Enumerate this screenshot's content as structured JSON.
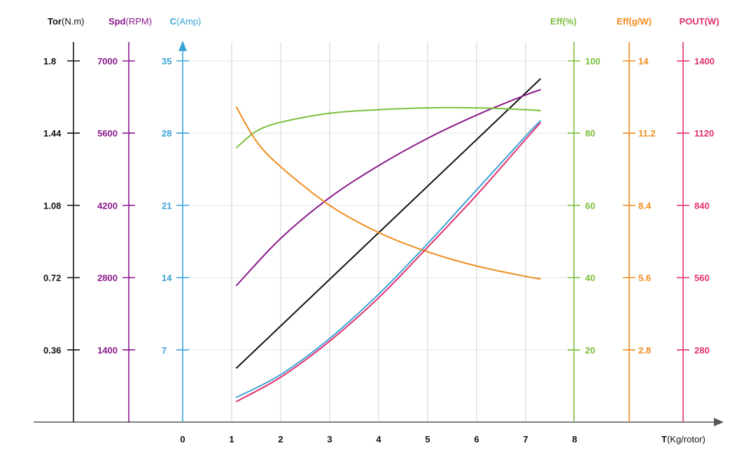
{
  "chart_data": {
    "type": "line",
    "x_axis": {
      "unit_bold": "T",
      "unit_rest": "(Kg/rotor)",
      "ticks": [
        "0",
        "1",
        "2",
        "3",
        "4",
        "5",
        "6",
        "7",
        "8"
      ],
      "range": [
        0,
        8
      ]
    },
    "axes": [
      {
        "id": "tor",
        "bold": "Tor",
        "rest": "(N.m)",
        "color": "#111111",
        "side": "left",
        "range": [
          0,
          1.8
        ],
        "ticks": [
          0.36,
          0.72,
          1.08,
          1.44,
          1.8
        ],
        "tick_labels": [
          "0.36",
          "0.72",
          "1.08",
          "1.44",
          "1.8"
        ]
      },
      {
        "id": "spd",
        "bold": "Spd",
        "rest": "(RPM)",
        "color": "#8b1a8b",
        "side": "left",
        "range": [
          0,
          7000
        ],
        "ticks": [
          1400,
          2800,
          4200,
          5600,
          7000
        ],
        "tick_labels": [
          "1400",
          "2800",
          "4200",
          "5600",
          "7000"
        ]
      },
      {
        "id": "c",
        "bold": "C",
        "rest": "(Amp)",
        "color": "#3aa3d6",
        "side": "left",
        "range": [
          0,
          35
        ],
        "ticks": [
          7,
          14,
          21,
          28,
          35
        ],
        "tick_labels": [
          "7",
          "14",
          "21",
          "28",
          "35"
        ]
      },
      {
        "id": "eff",
        "bold": "Eff",
        "rest": "(%)",
        "color": "#7bbf3c",
        "side": "right",
        "range": [
          0,
          100
        ],
        "ticks": [
          20,
          40,
          60,
          80,
          100
        ],
        "tick_labels": [
          "20",
          "40",
          "60",
          "80",
          "100"
        ]
      },
      {
        "id": "effg",
        "bold": "Eff",
        "rest": "(g/W)",
        "color": "#ee8c1e",
        "side": "right",
        "range": [
          0,
          14
        ],
        "ticks": [
          2.8,
          5.6,
          8.4,
          11.2,
          14
        ],
        "tick_labels": [
          "2.8",
          "5.6",
          "8.4",
          "11.2",
          "14"
        ]
      },
      {
        "id": "pout",
        "bold": "POUT",
        "rest": "(W)",
        "color": "#e0306e",
        "side": "right",
        "range": [
          0,
          1400
        ],
        "ticks": [
          280,
          560,
          840,
          1120,
          1400
        ],
        "tick_labels": [
          "280",
          "560",
          "840",
          "1120",
          "1400"
        ]
      }
    ],
    "series": [
      {
        "axis": "tor",
        "color": "#111111",
        "x": [
          1.1,
          7.3
        ],
        "y": [
          0.27,
          1.71
        ]
      },
      {
        "axis": "spd",
        "color": "#8b1a8b",
        "x": [
          1.1,
          2,
          3,
          4,
          5,
          6,
          7,
          7.3
        ],
        "y": [
          2650,
          3560,
          4350,
          4970,
          5500,
          5950,
          6340,
          6440
        ]
      },
      {
        "axis": "c",
        "color": "#3aa3d6",
        "x": [
          1.1,
          2,
          3,
          4,
          5,
          6,
          7,
          7.3
        ],
        "y": [
          2.4,
          4.6,
          8.1,
          12.4,
          17.3,
          22.5,
          27.7,
          29.2
        ]
      },
      {
        "axis": "eff",
        "color": "#7bbf3c",
        "x": [
          1.1,
          1.5,
          2,
          3,
          4,
          5,
          6,
          7,
          7.3
        ],
        "y": [
          76,
          80.5,
          83,
          85.5,
          86.5,
          87,
          87,
          86.5,
          86.2
        ]
      },
      {
        "axis": "effg",
        "color": "#ee8c1e",
        "x": [
          1.1,
          1.5,
          2,
          3,
          4,
          5,
          6,
          7,
          7.3
        ],
        "y": [
          12.2,
          10.9,
          9.9,
          8.4,
          7.35,
          6.6,
          6.05,
          5.65,
          5.55
        ]
      },
      {
        "axis": "pout",
        "color": "#e0306e",
        "x": [
          1.1,
          2,
          3,
          4,
          5,
          6,
          7,
          7.3
        ],
        "y": [
          80,
          174,
          314,
          482,
          678,
          880,
          1096,
          1160
        ]
      }
    ],
    "grid": true
  }
}
